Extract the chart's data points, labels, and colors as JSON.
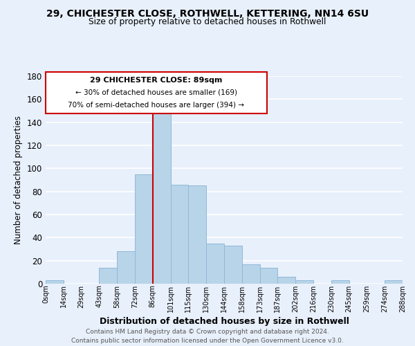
{
  "title1": "29, CHICHESTER CLOSE, ROTHWELL, KETTERING, NN14 6SU",
  "title2": "Size of property relative to detached houses in Rothwell",
  "xlabel": "Distribution of detached houses by size in Rothwell",
  "ylabel": "Number of detached properties",
  "bar_color": "#b8d4e8",
  "bar_edge_color": "#90b8d8",
  "background_color": "#e8f0fb",
  "grid_color": "white",
  "annotation_border_color": "#cc0000",
  "vline_color": "#cc0000",
  "annotation_line1": "29 CHICHESTER CLOSE: 89sqm",
  "annotation_line2": "← 30% of detached houses are smaller (169)",
  "annotation_line3": "70% of semi-detached houses are larger (394) →",
  "tick_labels": [
    "0sqm",
    "14sqm",
    "29sqm",
    "43sqm",
    "58sqm",
    "72sqm",
    "86sqm",
    "101sqm",
    "115sqm",
    "130sqm",
    "144sqm",
    "158sqm",
    "173sqm",
    "187sqm",
    "202sqm",
    "216sqm",
    "230sqm",
    "245sqm",
    "259sqm",
    "274sqm",
    "288sqm"
  ],
  "bar_heights": [
    3,
    0,
    0,
    14,
    28,
    95,
    148,
    86,
    85,
    35,
    33,
    17,
    14,
    6,
    3,
    0,
    3,
    0,
    0,
    3
  ],
  "ylim": [
    0,
    180
  ],
  "yticks": [
    0,
    20,
    40,
    60,
    80,
    100,
    120,
    140,
    160,
    180
  ],
  "footer1": "Contains HM Land Registry data © Crown copyright and database right 2024.",
  "footer2": "Contains public sector information licensed under the Open Government Licence v3.0."
}
